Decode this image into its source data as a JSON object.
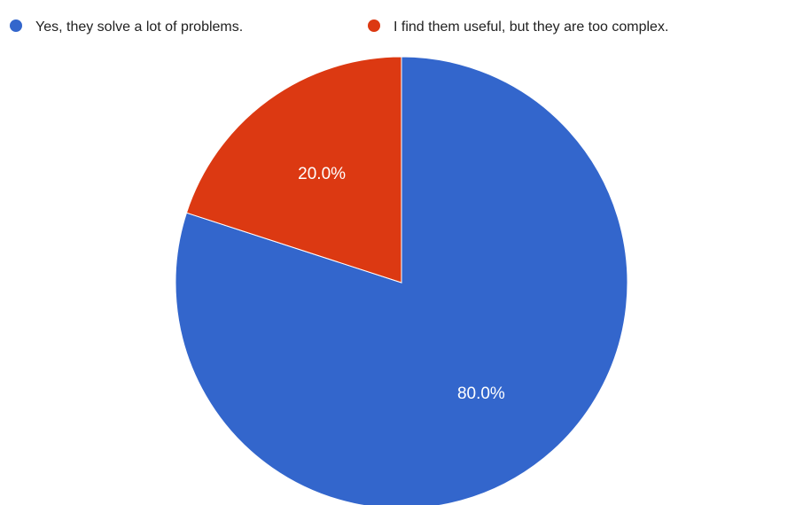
{
  "chart_data": {
    "type": "pie",
    "start_angle_deg": 0,
    "direction": "clockwise",
    "legend_position": "top",
    "slices": [
      {
        "label": "Yes, they solve a lot of problems.",
        "value": 80.0,
        "value_label": "80.0%",
        "color": "#3366cc"
      },
      {
        "label": "I find them useful, but they are too complex.",
        "value": 20.0,
        "value_label": "20.0%",
        "color": "#dc3912"
      }
    ]
  }
}
